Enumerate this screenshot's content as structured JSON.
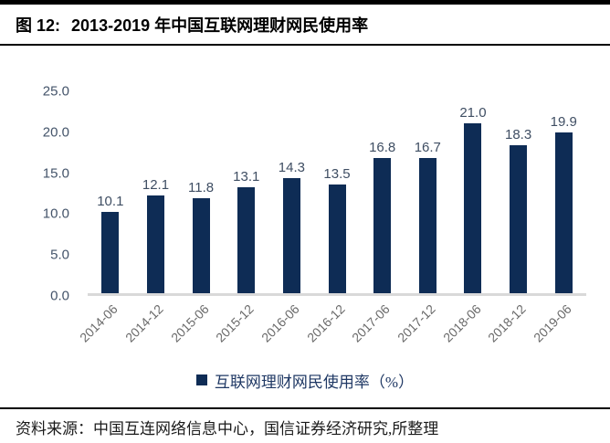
{
  "header": {
    "figure_label": "图 12:",
    "title": "2013-2019 年中国互联网理财网民使用率"
  },
  "chart_data": {
    "type": "bar",
    "title": "2013-2019 年中国互联网理财网民使用率",
    "categories": [
      "2014-06",
      "2014-12",
      "2015-06",
      "2015-12",
      "2016-06",
      "2016-12",
      "2017-06",
      "2017-12",
      "2018-06",
      "2018-12",
      "2019-06"
    ],
    "values": [
      10.1,
      12.1,
      11.8,
      13.1,
      14.3,
      13.5,
      16.8,
      16.7,
      21.0,
      18.3,
      19.9
    ],
    "value_labels": [
      "10.1",
      "12.1",
      "11.8",
      "13.1",
      "14.3",
      "13.5",
      "16.8",
      "16.7",
      "21.0",
      "18.3",
      "19.9"
    ],
    "series_name": "互联网理财网民使用率（%）",
    "xlabel": "",
    "ylabel": "",
    "ylim": [
      0,
      25
    ],
    "yticks": [
      0,
      5,
      10,
      15,
      20,
      25
    ],
    "ytick_labels": [
      "0.0",
      "5.0",
      "10.0",
      "15.0",
      "20.0",
      "25.0"
    ],
    "grid": false,
    "legend_position": "bottom",
    "colors": {
      "bar": "#0e2c55",
      "value_label": "#3f4e63",
      "ytick": "#44546a",
      "xtick": "#6a6a6a",
      "baseline": "#d9d9d9",
      "legend_text": "#1f3864"
    }
  },
  "legend": {
    "label": "互联网理财网民使用率（%）"
  },
  "footer": {
    "source_text": "资料来源：中国互连网络信息中心，国信证券经济研究,所整理"
  }
}
